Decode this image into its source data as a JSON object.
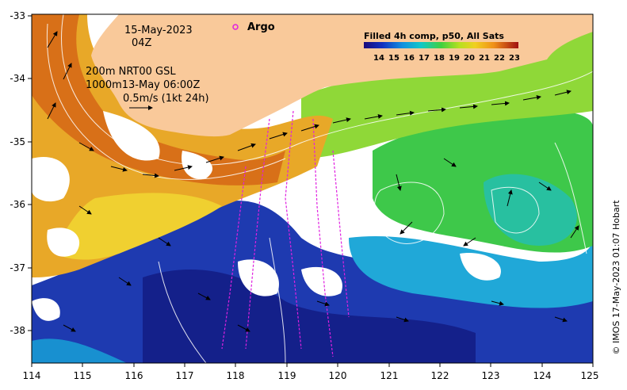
{
  "map": {
    "date": "15-May-2023",
    "time": "04Z",
    "current_line_1": "200m  NRT00 GSL",
    "current_line_2": "1000m13-May 06:00Z",
    "scale_label": "0.5m/s (1kt 24h)",
    "argo_label": "Argo",
    "credit": "© IMOS 17-May-2023 01:07 Hobart",
    "lon_labels": [
      "114",
      "115",
      "116",
      "117",
      "118",
      "119",
      "120",
      "121",
      "122",
      "123",
      "124",
      "125"
    ],
    "lat_labels": [
      "-33",
      "-34",
      "-35",
      "-36",
      "-37",
      "-38"
    ],
    "legend": {
      "title": "Filled 4h comp, p50, All Sats",
      "ticks": [
        "14",
        "15",
        "16",
        "17",
        "18",
        "19",
        "20",
        "21",
        "22",
        "23"
      ]
    }
  },
  "colors": {
    "land": "#f9c99a",
    "cold": "#1e2a9c",
    "mid": "#18b8d0",
    "green": "#3fcf4d",
    "warm": "#e0a020",
    "hot": "#d86010",
    "argo": "#e020e0"
  }
}
